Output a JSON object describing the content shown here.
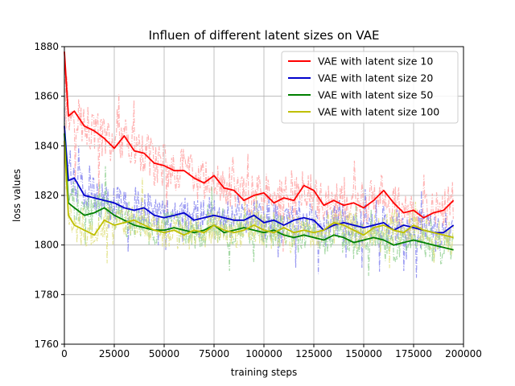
{
  "chart_data": {
    "type": "line",
    "title": "Influen of different latent sizes on VAE",
    "xlabel": "training steps",
    "ylabel": "loss values",
    "xlim": [
      0,
      200000
    ],
    "ylim": [
      1760,
      1880
    ],
    "xticks": [
      0,
      25000,
      50000,
      75000,
      100000,
      125000,
      150000,
      175000,
      200000
    ],
    "xtick_labels": [
      "0",
      "25000",
      "50000",
      "75000",
      "100000",
      "125000",
      "150000",
      "175000",
      "200000"
    ],
    "yticks": [
      1760,
      1780,
      1800,
      1820,
      1840,
      1860,
      1880
    ],
    "ytick_labels": [
      "1760",
      "1780",
      "1800",
      "1820",
      "1840",
      "1860",
      "1880"
    ],
    "grid": true,
    "legend_position": "top-right",
    "raw_noise_amplitude": [
      18,
      16,
      14,
      14
    ],
    "series": [
      {
        "name": "VAE with latent size 10",
        "color": "#ff0000",
        "raw_color": "#ff9999",
        "x": [
          0,
          2000,
          5000,
          10000,
          15000,
          20000,
          25000,
          30000,
          35000,
          40000,
          45000,
          50000,
          55000,
          60000,
          65000,
          70000,
          75000,
          80000,
          85000,
          90000,
          95000,
          100000,
          105000,
          110000,
          115000,
          120000,
          125000,
          130000,
          135000,
          140000,
          145000,
          150000,
          155000,
          160000,
          165000,
          170000,
          175000,
          180000,
          185000,
          190000,
          195000
        ],
        "y": [
          1878,
          1852,
          1854,
          1848,
          1846,
          1843,
          1839,
          1844,
          1838,
          1837,
          1833,
          1832,
          1830,
          1830,
          1827,
          1825,
          1828,
          1823,
          1822,
          1818,
          1820,
          1821,
          1817,
          1819,
          1818,
          1824,
          1822,
          1816,
          1818,
          1816,
          1817,
          1815,
          1818,
          1822,
          1817,
          1813,
          1814,
          1811,
          1813,
          1814,
          1818
        ]
      },
      {
        "name": "VAE with latent size 20",
        "color": "#0000cc",
        "raw_color": "#7777ee",
        "x": [
          0,
          2000,
          5000,
          10000,
          15000,
          20000,
          25000,
          30000,
          35000,
          40000,
          45000,
          50000,
          55000,
          60000,
          65000,
          70000,
          75000,
          80000,
          85000,
          90000,
          95000,
          100000,
          105000,
          110000,
          115000,
          120000,
          125000,
          130000,
          135000,
          140000,
          145000,
          150000,
          155000,
          160000,
          165000,
          170000,
          175000,
          180000,
          185000,
          190000,
          195000
        ],
        "y": [
          1848,
          1826,
          1827,
          1820,
          1819,
          1818,
          1817,
          1815,
          1814,
          1815,
          1812,
          1811,
          1812,
          1813,
          1810,
          1811,
          1812,
          1811,
          1810,
          1810,
          1812,
          1809,
          1810,
          1808,
          1810,
          1811,
          1810,
          1806,
          1808,
          1809,
          1808,
          1807,
          1808,
          1809,
          1806,
          1808,
          1807,
          1806,
          1805,
          1805,
          1808
        ]
      },
      {
        "name": "VAE with latent size 50",
        "color": "#008000",
        "raw_color": "#88cc88",
        "x": [
          0,
          2000,
          5000,
          10000,
          15000,
          20000,
          25000,
          30000,
          35000,
          40000,
          45000,
          50000,
          55000,
          60000,
          65000,
          70000,
          75000,
          80000,
          85000,
          90000,
          95000,
          100000,
          105000,
          110000,
          115000,
          120000,
          125000,
          130000,
          135000,
          140000,
          145000,
          150000,
          155000,
          160000,
          165000,
          170000,
          175000,
          180000,
          185000,
          190000,
          195000
        ],
        "y": [
          1845,
          1817,
          1815,
          1812,
          1813,
          1815,
          1812,
          1810,
          1808,
          1807,
          1806,
          1806,
          1807,
          1806,
          1805,
          1806,
          1808,
          1805,
          1806,
          1807,
          1806,
          1805,
          1806,
          1804,
          1803,
          1804,
          1803,
          1802,
          1804,
          1803,
          1801,
          1802,
          1803,
          1802,
          1800,
          1801,
          1802,
          1801,
          1800,
          1799,
          1798
        ]
      },
      {
        "name": "VAE with latent size 100",
        "color": "#bfbf00",
        "raw_color": "#dddd77",
        "x": [
          0,
          2000,
          5000,
          10000,
          15000,
          20000,
          25000,
          30000,
          35000,
          40000,
          45000,
          50000,
          55000,
          60000,
          65000,
          70000,
          75000,
          80000,
          85000,
          90000,
          95000,
          100000,
          105000,
          110000,
          115000,
          120000,
          125000,
          130000,
          135000,
          140000,
          145000,
          150000,
          155000,
          160000,
          165000,
          170000,
          175000,
          180000,
          185000,
          190000,
          195000
        ],
        "y": [
          1842,
          1812,
          1808,
          1806,
          1804,
          1810,
          1808,
          1809,
          1810,
          1808,
          1806,
          1805,
          1806,
          1804,
          1806,
          1805,
          1808,
          1806,
          1805,
          1806,
          1808,
          1806,
          1805,
          1807,
          1805,
          1806,
          1805,
          1806,
          1809,
          1808,
          1806,
          1804,
          1807,
          1808,
          1806,
          1805,
          1808,
          1806,
          1805,
          1804,
          1803
        ]
      }
    ]
  }
}
